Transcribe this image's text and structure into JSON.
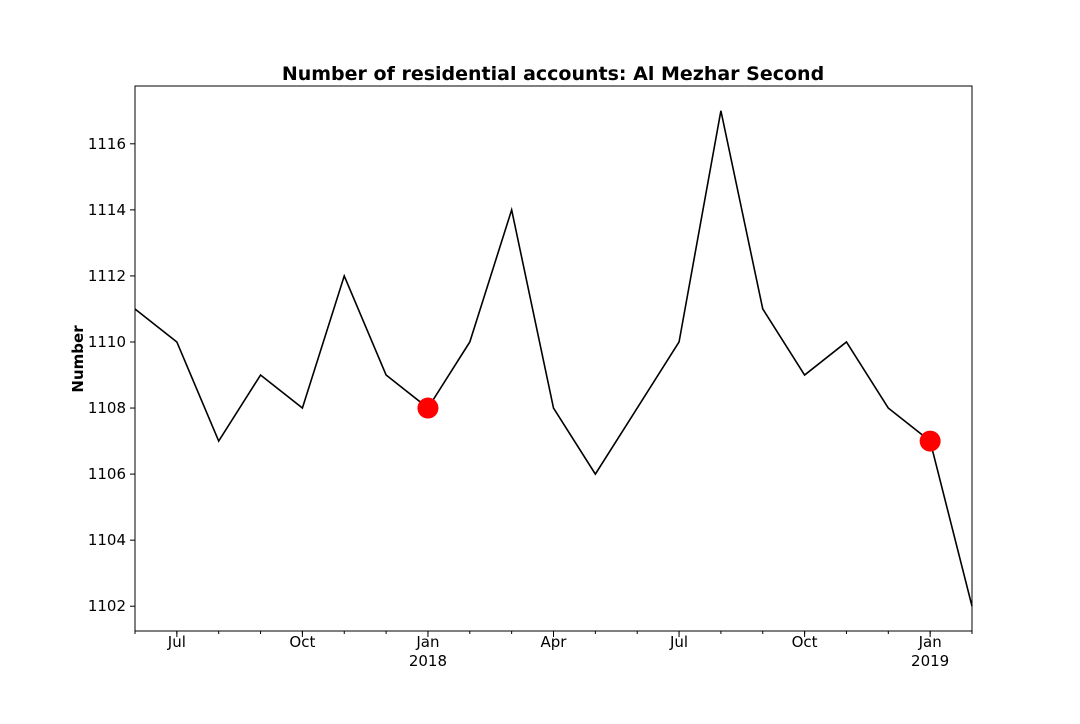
{
  "chart_data": {
    "type": "line",
    "title": "Number of residential accounts: Al Mezhar Second",
    "xlabel": "",
    "ylabel": "Number",
    "x": [
      "2017-06",
      "2017-07",
      "2017-08",
      "2017-09",
      "2017-10",
      "2017-11",
      "2017-12",
      "2018-01",
      "2018-02",
      "2018-03",
      "2018-04",
      "2018-05",
      "2018-06",
      "2018-07",
      "2018-08",
      "2018-09",
      "2018-10",
      "2018-11",
      "2018-12",
      "2019-01",
      "2019-02"
    ],
    "series": [
      {
        "values": [
          1111,
          1110,
          1107,
          1109,
          1108,
          1112,
          1109,
          1108,
          1110,
          1114,
          1108,
          1106,
          1108,
          1110,
          1117,
          1111,
          1109,
          1110,
          1108,
          1107,
          1102
        ],
        "color": "#000000"
      }
    ],
    "highlights": [
      {
        "x": "2018-01",
        "value": 1108,
        "color": "#ff0000"
      },
      {
        "x": "2019-01",
        "value": 1107,
        "color": "#ff0000"
      }
    ],
    "xlim": [
      "2017-06",
      "2019-02"
    ],
    "ylim": [
      1101.25,
      1117.75
    ],
    "yticks": [
      1102,
      1104,
      1106,
      1108,
      1110,
      1112,
      1114,
      1116
    ],
    "xticks_major": [
      {
        "x": "2017-07",
        "label": "Jul",
        "sublabel": ""
      },
      {
        "x": "2017-10",
        "label": "Oct",
        "sublabel": ""
      },
      {
        "x": "2018-01",
        "label": "Jan",
        "sublabel": "2018"
      },
      {
        "x": "2018-04",
        "label": "Apr",
        "sublabel": ""
      },
      {
        "x": "2018-07",
        "label": "Jul",
        "sublabel": ""
      },
      {
        "x": "2018-10",
        "label": "Oct",
        "sublabel": ""
      },
      {
        "x": "2019-01",
        "label": "Jan",
        "sublabel": "2019"
      }
    ],
    "grid": false,
    "legend": "none"
  }
}
